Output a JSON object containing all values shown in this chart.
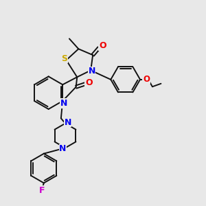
{
  "bg_color": "#e8e8e8",
  "atom_colors": {
    "N": "#0000ee",
    "O": "#ee0000",
    "S": "#ccaa00",
    "F": "#cc00cc",
    "C": "#111111"
  },
  "bond_color": "#111111",
  "bond_width": 1.4,
  "figsize": [
    3.0,
    3.0
  ],
  "dpi": 100
}
